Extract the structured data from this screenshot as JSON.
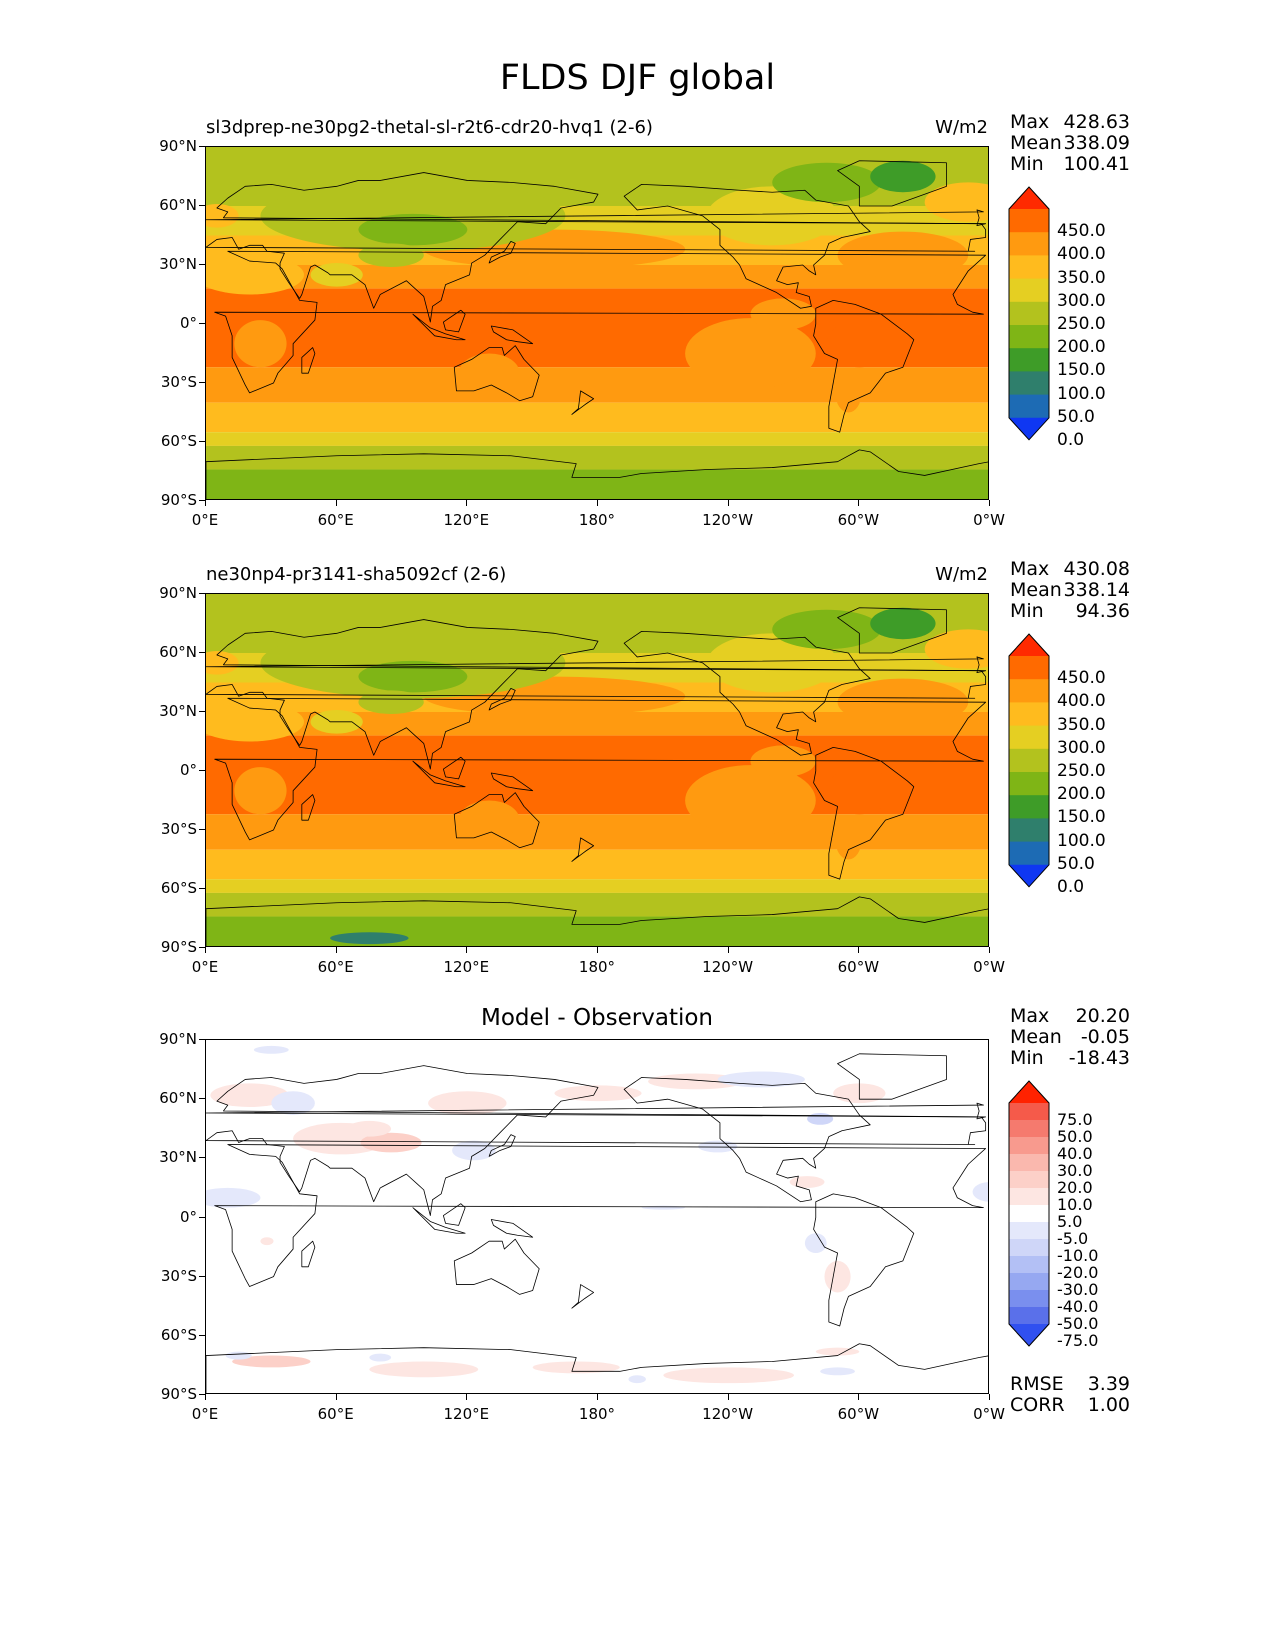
{
  "title": "FLDS DJF global",
  "panels": [
    {
      "id": "test",
      "title_left": "sl3dprep-ne30pg2-thetal-sl-r2t6-cdr20-hvq1 (2-6)",
      "title_center": "",
      "units": "W/m2",
      "stats": [
        {
          "label": "Max",
          "value": "428.63"
        },
        {
          "label": "Mean",
          "value": "338.09"
        },
        {
          "label": "Min",
          "value": "100.41"
        }
      ],
      "colorbar": {
        "labels": [
          "450.0",
          "400.0",
          "350.0",
          "300.0",
          "250.0",
          "200.0",
          "150.0",
          "100.0",
          "50.0",
          "0.0"
        ],
        "colors": [
          "#ff2a00",
          "#ff6a00",
          "#ff9a10",
          "#ffbb1e",
          "#e5cf22",
          "#b3c21e",
          "#7fb516",
          "#3e9c28",
          "#2f7f6c",
          "#1d6bb4",
          "#0f37f2"
        ]
      }
    },
    {
      "id": "reference",
      "title_left": "ne30np4-pr3141-sha5092cf (2-6)",
      "title_center": "",
      "units": "W/m2",
      "stats": [
        {
          "label": "Max",
          "value": "430.08"
        },
        {
          "label": "Mean",
          "value": "338.14"
        },
        {
          "label": "Min",
          "value": "94.36"
        }
      ],
      "colorbar": {
        "labels": [
          "450.0",
          "400.0",
          "350.0",
          "300.0",
          "250.0",
          "200.0",
          "150.0",
          "100.0",
          "50.0",
          "0.0"
        ],
        "colors": [
          "#ff2a00",
          "#ff6a00",
          "#ff9a10",
          "#ffbb1e",
          "#e5cf22",
          "#b3c21e",
          "#7fb516",
          "#3e9c28",
          "#2f7f6c",
          "#1d6bb4",
          "#0f37f2"
        ]
      }
    },
    {
      "id": "difference",
      "title_left": "",
      "title_center": "Model - Observation",
      "units": "",
      "stats": [
        {
          "label": "Max",
          "value": "20.20"
        },
        {
          "label": "Mean",
          "value": "-0.05"
        },
        {
          "label": "Min",
          "value": "-18.43"
        }
      ],
      "extra_stats": [
        {
          "label": "RMSE",
          "value": "3.39"
        },
        {
          "label": "CORR",
          "value": "1.00"
        }
      ],
      "colorbar": {
        "labels": [
          "75.0",
          "50.0",
          "40.0",
          "30.0",
          "20.0",
          "10.0",
          "5.0",
          "-5.0",
          "-10.0",
          "-20.0",
          "-30.0",
          "-40.0",
          "-50.0",
          "-75.0"
        ],
        "colors": [
          "#ff2200",
          "#f55a4a",
          "#f57a6e",
          "#f89a8e",
          "#fab8ae",
          "#fcd0c8",
          "#fde6e2",
          "#ffffff",
          "#e4e8fb",
          "#cfd6f8",
          "#b3c0f5",
          "#96a8f1",
          "#7a8fee",
          "#5a70ea",
          "#3050f0"
        ]
      }
    }
  ],
  "axes": {
    "y_ticks": [
      "90°N",
      "60°N",
      "30°N",
      "0°",
      "30°S",
      "60°S",
      "90°S"
    ],
    "x_ticks": [
      "0°E",
      "60°E",
      "120°E",
      "180°",
      "120°W",
      "60°W",
      "0°W"
    ]
  },
  "chart_data": [
    {
      "type": "heatmap",
      "title": "sl3dprep-ne30pg2-thetal-sl-r2t6-cdr20-hvq1 (2-6)",
      "variable": "FLDS",
      "season": "DJF",
      "units": "W/m2",
      "projection": "PlateCarree",
      "xlim": [
        0,
        360
      ],
      "ylim": [
        -90,
        90
      ],
      "contour_levels": [
        0,
        50,
        100,
        150,
        200,
        250,
        300,
        350,
        400,
        450
      ],
      "stats": {
        "max": 428.63,
        "mean": 338.09,
        "min": 100.41
      }
    },
    {
      "type": "heatmap",
      "title": "ne30np4-pr3141-sha5092cf (2-6)",
      "variable": "FLDS",
      "season": "DJF",
      "units": "W/m2",
      "projection": "PlateCarree",
      "xlim": [
        0,
        360
      ],
      "ylim": [
        -90,
        90
      ],
      "contour_levels": [
        0,
        50,
        100,
        150,
        200,
        250,
        300,
        350,
        400,
        450
      ],
      "stats": {
        "max": 430.08,
        "mean": 338.14,
        "min": 94.36
      }
    },
    {
      "type": "heatmap",
      "title": "Model - Observation",
      "projection": "PlateCarree",
      "xlim": [
        0,
        360
      ],
      "ylim": [
        -90,
        90
      ],
      "contour_levels": [
        -75,
        -50,
        -40,
        -30,
        -20,
        -10,
        -5,
        5,
        10,
        20,
        30,
        40,
        50,
        75
      ],
      "stats": {
        "max": 20.2,
        "mean": -0.05,
        "min": -18.43,
        "rmse": 3.39,
        "corr": 1.0
      }
    }
  ]
}
